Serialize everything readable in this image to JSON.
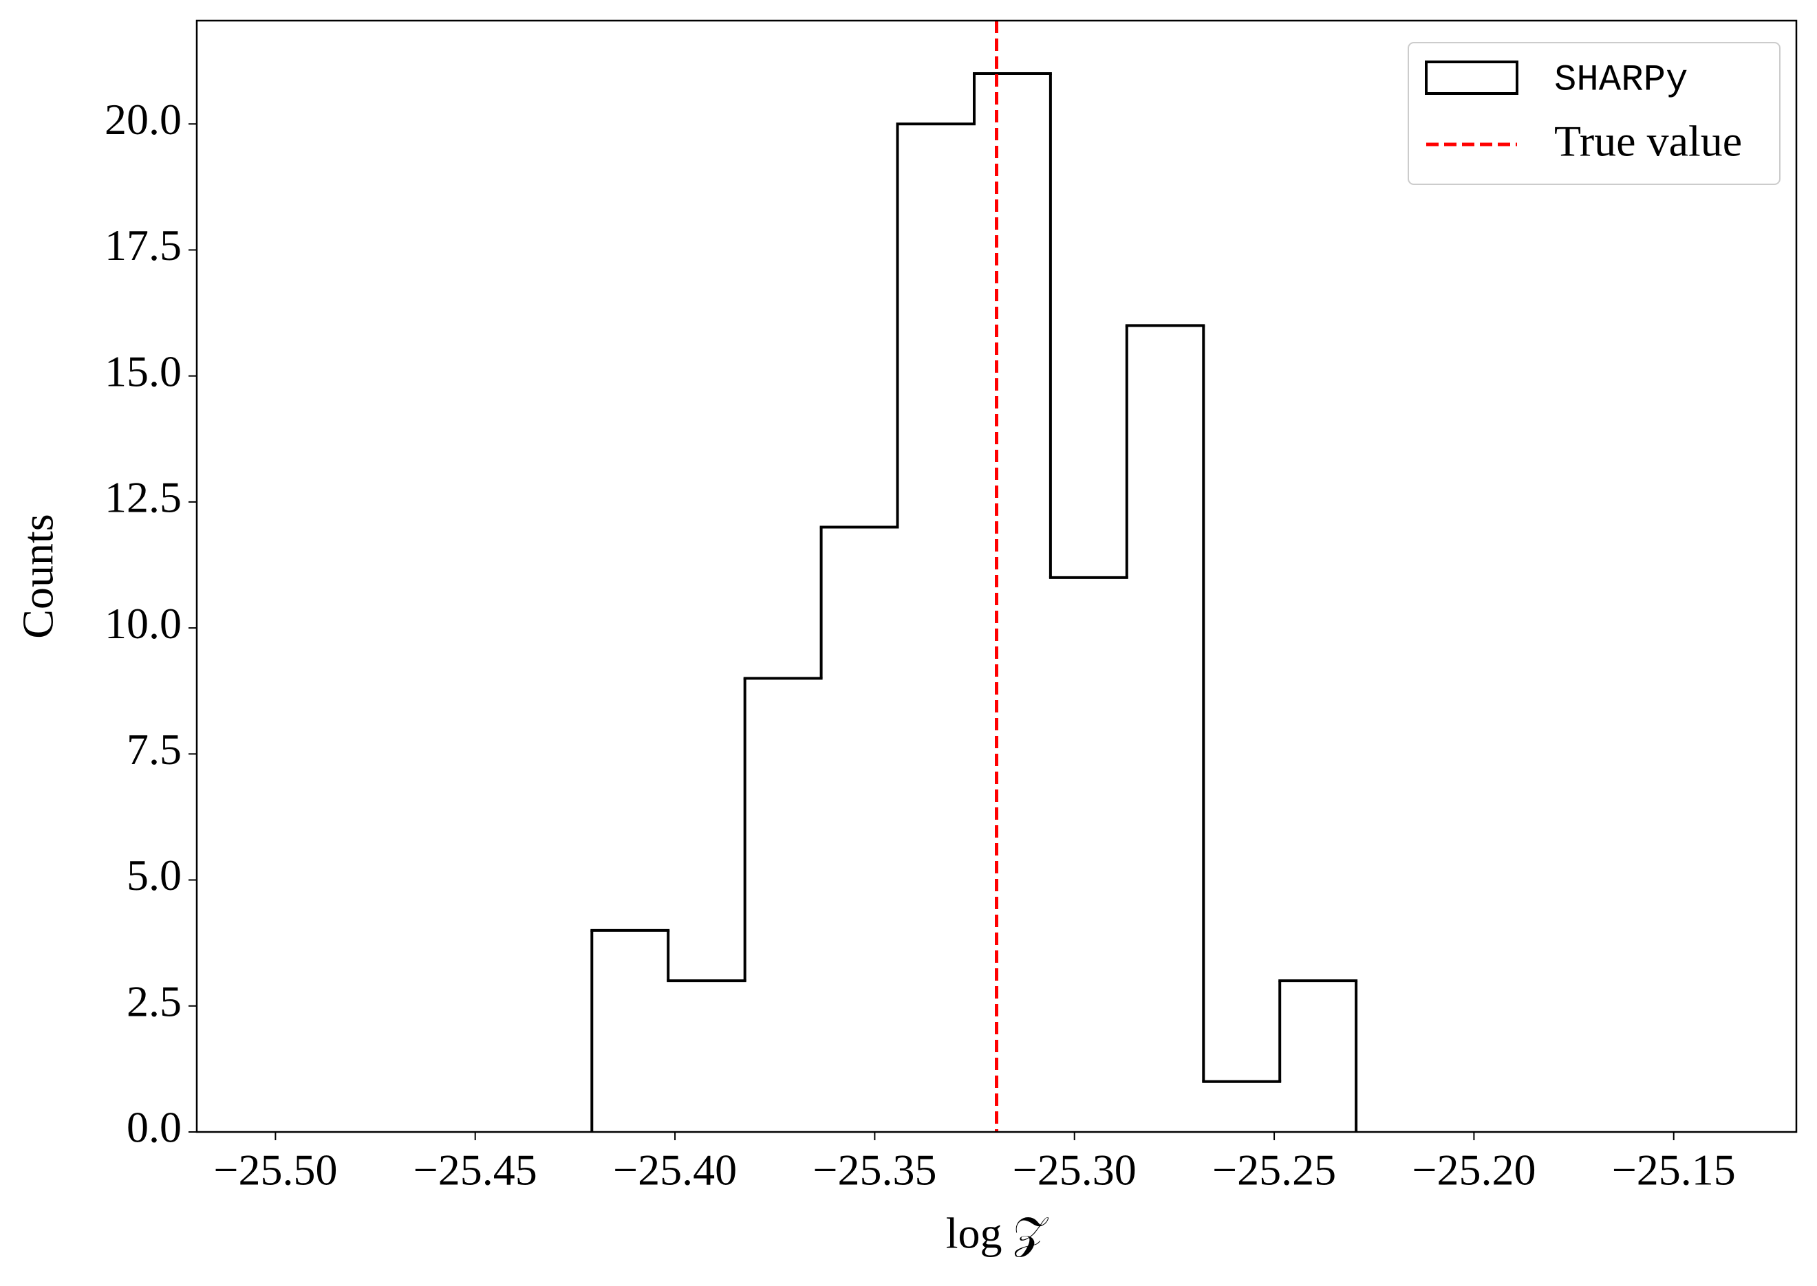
{
  "chart_data": {
    "type": "histogram",
    "xlabel": "log 𝒵",
    "ylabel": "Counts",
    "bins": [
      -25.4208,
      -25.4017,
      -25.3825,
      -25.3634,
      -25.3443,
      -25.3251,
      -25.306,
      -25.2869,
      -25.2677,
      -25.2486,
      -25.2295
    ],
    "counts": [
      4,
      3,
      9,
      12,
      20,
      21,
      11,
      16,
      1,
      3
    ],
    "name": "SHARPy",
    "color": "#000000",
    "reference_line": {
      "name": "True value",
      "x": -25.3195,
      "color": "#ff0000",
      "style": "dashed"
    },
    "xlim": [
      -25.5197,
      -25.1193
    ],
    "ylim": [
      0,
      22.05
    ],
    "xticks": [
      {
        "value": -25.5,
        "label": "−25.50"
      },
      {
        "value": -25.45,
        "label": "−25.45"
      },
      {
        "value": -25.4,
        "label": "−25.40"
      },
      {
        "value": -25.35,
        "label": "−25.35"
      },
      {
        "value": -25.3,
        "label": "−25.30"
      },
      {
        "value": -25.25,
        "label": "−25.25"
      },
      {
        "value": -25.2,
        "label": "−25.20"
      },
      {
        "value": -25.15,
        "label": "−25.15"
      }
    ],
    "yticks": [
      {
        "value": 0,
        "label": "0.0"
      },
      2.5,
      {
        "value": 5,
        "label": "5.0"
      },
      7.5,
      {
        "value": 10,
        "label": "10.0"
      },
      12.5,
      {
        "value": 15,
        "label": "15.0"
      },
      17.5,
      {
        "value": 20,
        "label": "20.0"
      }
    ],
    "legend": "upper right"
  }
}
